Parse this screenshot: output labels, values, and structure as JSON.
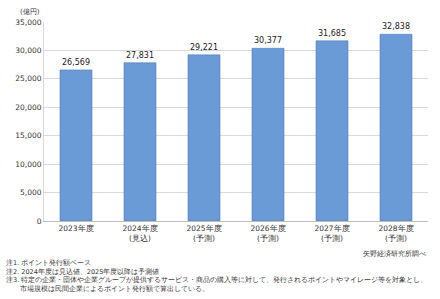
{
  "chart_data": {
    "type": "bar",
    "y_label": "(億円)",
    "categories": [
      "2023年度",
      "2024年度\n(見込)",
      "2025年度\n(予測)",
      "2026年度\n(予測)",
      "2027年度\n(予測)",
      "2028年度\n(予測)"
    ],
    "values": [
      26569,
      27831,
      29221,
      30377,
      31685,
      32838
    ],
    "value_labels": [
      "26,569",
      "27,831",
      "29,221",
      "30,377",
      "31,685",
      "32,838"
    ],
    "data_labels": true,
    "color": "#6a9bd6",
    "ylim": [
      0,
      35000
    ],
    "yticks": [
      0,
      {
        "value": 5000,
        "label": "5,000"
      },
      {
        "value": 10000,
        "label": "10,000"
      },
      {
        "value": 15000,
        "label": "15,000"
      },
      {
        "value": 20000,
        "label": "20,000"
      },
      {
        "value": 25000,
        "label": "25,000"
      },
      {
        "value": 30000,
        "label": "30,000"
      },
      {
        "value": 35000,
        "label": "35,000"
      }
    ],
    "grid": true,
    "source": "矢野経済研究所調べ",
    "annotations": [
      "注1. ポイント発行額ベース",
      "注2. 2024年度は見込値、2025年度以降は予測値",
      "注3. 特定の企業・団体や企業グループが提供するサービス・商品の購入等に対して、発行されるポイントやマイレージ等を対象とし、",
      "市場規模は民間企業によるポイント発行額で算出している。"
    ]
  }
}
